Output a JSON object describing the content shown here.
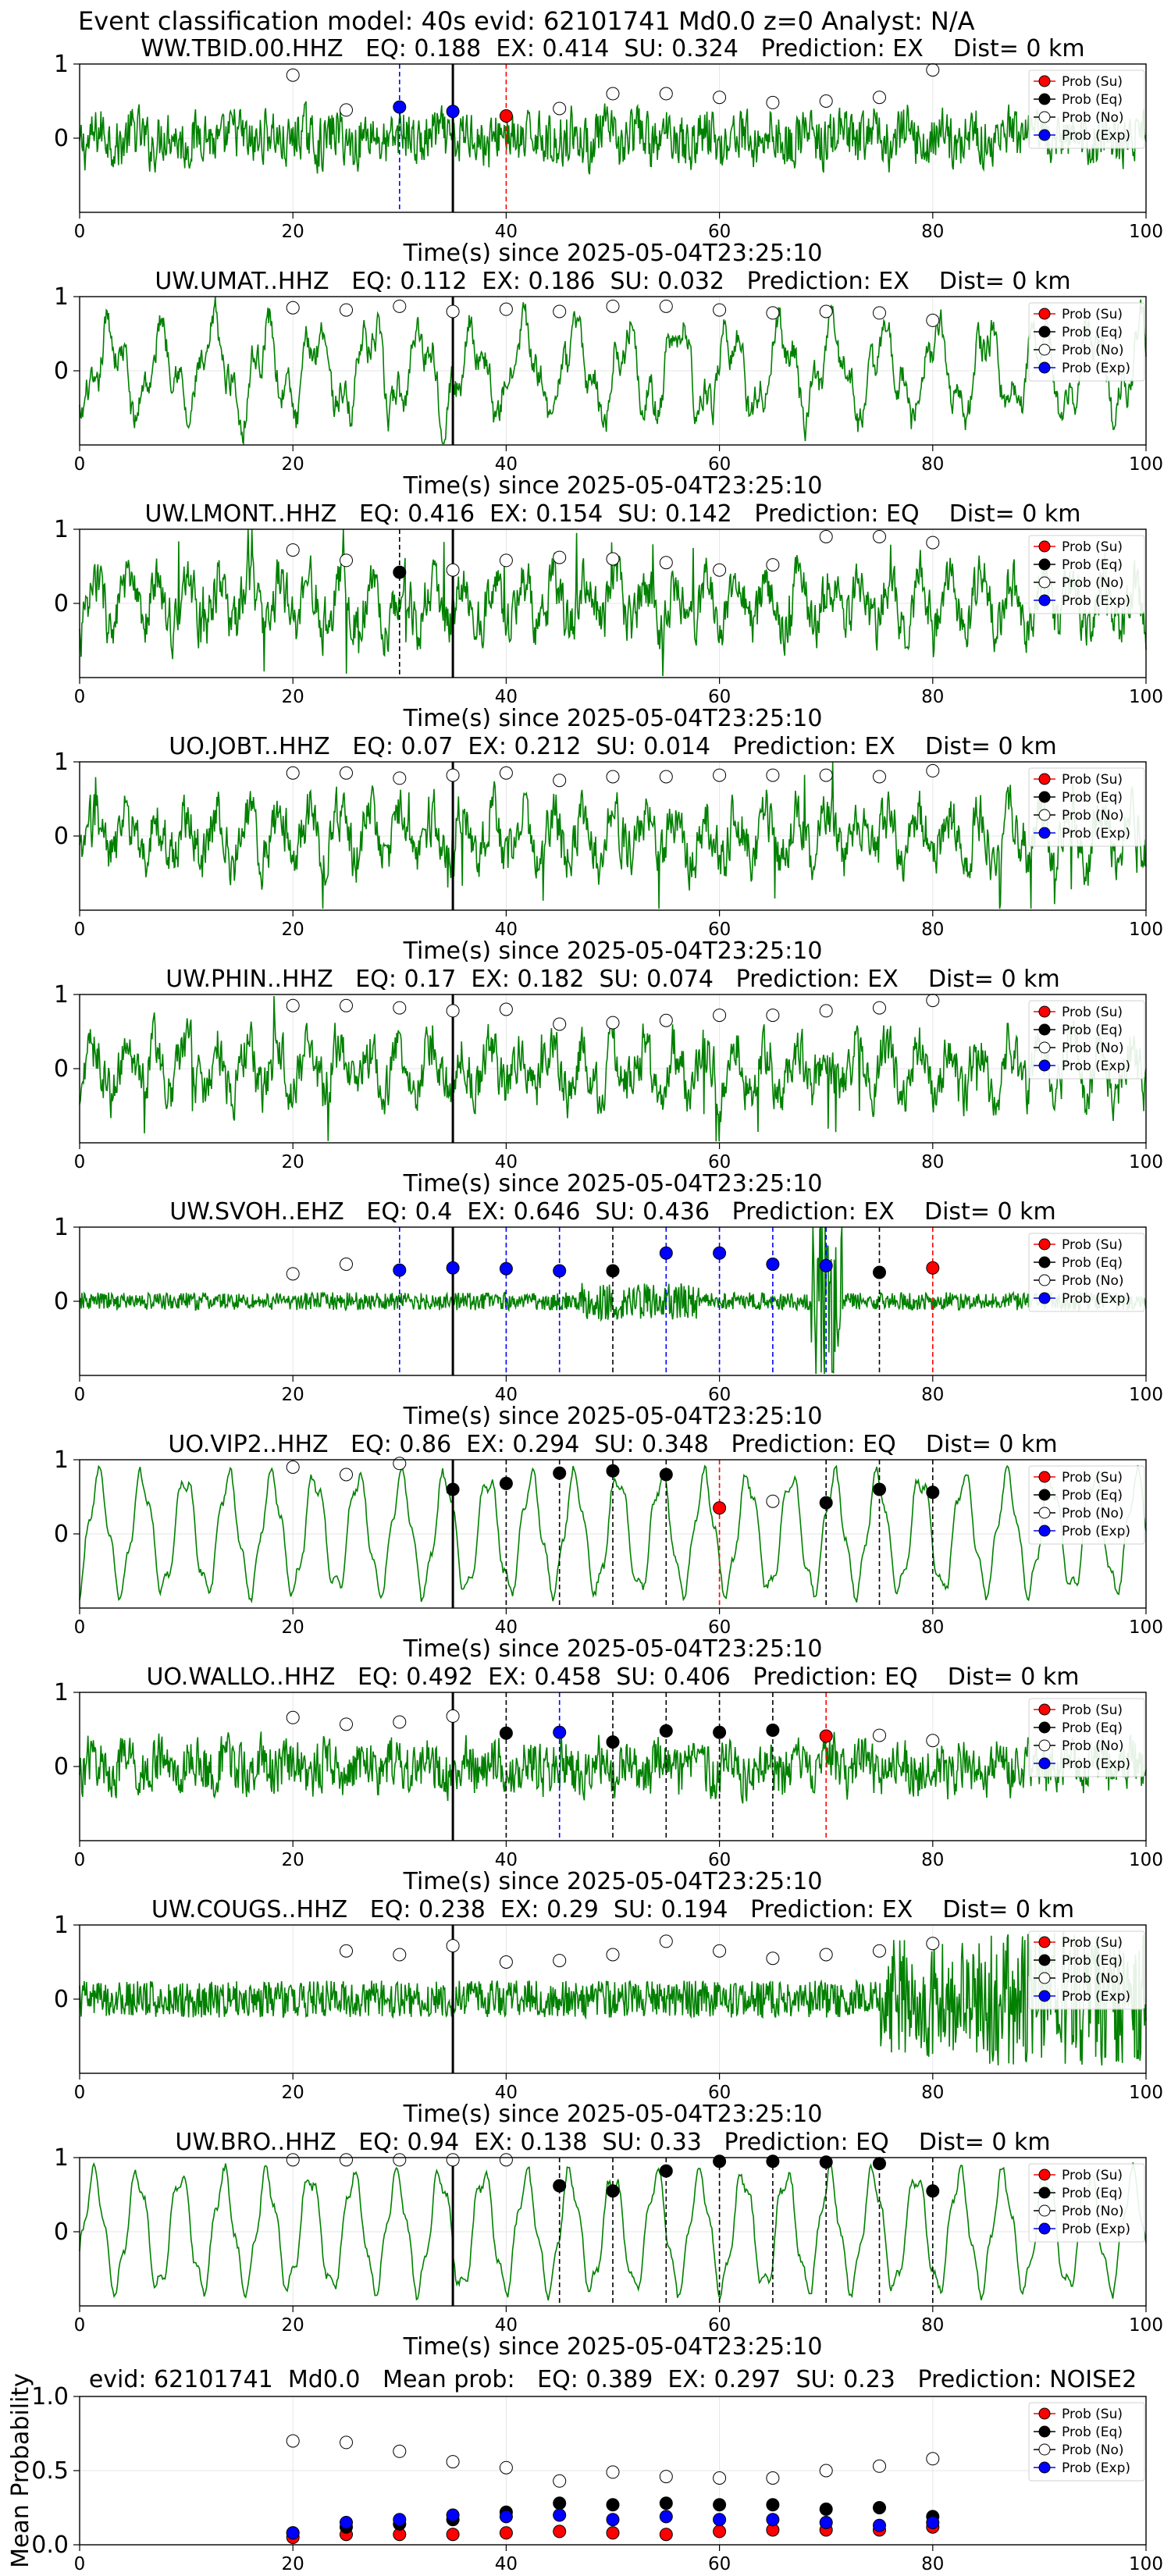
{
  "figure_title": "Event classification model: 40s evid: 62101741 Md0.0 z=0 Analyst: N/A",
  "legend_labels": [
    "Prob (Su)",
    "Prob (Eq)",
    "Prob (No)",
    "Prob (Exp)"
  ],
  "colors": {
    "trace": "#008000",
    "su": "#ff0000",
    "eq": "#000000",
    "no": "#ffffff",
    "exp": "#0000ff",
    "origin_line": "#000000",
    "grid": "#e6e6e6"
  },
  "chart_data": [
    {
      "type": "line",
      "title": "WW.TBID.00.HHZ   EQ: 0.188  EX: 0.414  SU: 0.324   Prediction: EX    Dist= 0 km",
      "xlabel": "Time(s) since 2025-05-04T23:25:10",
      "xlim": [
        0,
        100
      ],
      "ylim": [
        -1,
        1
      ],
      "xticks": [
        "0",
        "20",
        "40",
        "60",
        "80",
        "100"
      ],
      "yticks": [
        "1",
        "0"
      ],
      "origin_time": 35,
      "trace_style": "broadband",
      "markers": [
        {
          "t": 20,
          "p": 0.85,
          "cls": "no"
        },
        {
          "t": 25,
          "p": 0.38,
          "cls": "no"
        },
        {
          "t": 30,
          "p": 0.42,
          "cls": "exp",
          "line": true
        },
        {
          "t": 35,
          "p": 0.36,
          "cls": "exp"
        },
        {
          "t": 40,
          "p": 0.3,
          "cls": "su",
          "line": true
        },
        {
          "t": 45,
          "p": 0.4,
          "cls": "no"
        },
        {
          "t": 50,
          "p": 0.6,
          "cls": "no"
        },
        {
          "t": 55,
          "p": 0.6,
          "cls": "no"
        },
        {
          "t": 60,
          "p": 0.55,
          "cls": "no"
        },
        {
          "t": 65,
          "p": 0.48,
          "cls": "no"
        },
        {
          "t": 70,
          "p": 0.5,
          "cls": "no"
        },
        {
          "t": 75,
          "p": 0.55,
          "cls": "no"
        },
        {
          "t": 80,
          "p": 0.92,
          "cls": "no"
        }
      ]
    },
    {
      "type": "line",
      "title": "UW.UMAT..HHZ   EQ: 0.112  EX: 0.186  SU: 0.032   Prediction: EX    Dist= 0 km",
      "xlabel": "Time(s) since 2025-05-04T23:25:10",
      "xlim": [
        0,
        100
      ],
      "ylim": [
        -1,
        1
      ],
      "xticks": [
        "0",
        "20",
        "40",
        "60",
        "80",
        "100"
      ],
      "yticks": [
        "1",
        "0"
      ],
      "origin_time": 35,
      "trace_style": "wavy",
      "markers": [
        {
          "t": 20,
          "p": 0.85,
          "cls": "no"
        },
        {
          "t": 25,
          "p": 0.82,
          "cls": "no"
        },
        {
          "t": 30,
          "p": 0.87,
          "cls": "no"
        },
        {
          "t": 35,
          "p": 0.8,
          "cls": "no"
        },
        {
          "t": 40,
          "p": 0.83,
          "cls": "no"
        },
        {
          "t": 45,
          "p": 0.8,
          "cls": "no"
        },
        {
          "t": 50,
          "p": 0.87,
          "cls": "no"
        },
        {
          "t": 55,
          "p": 0.87,
          "cls": "no"
        },
        {
          "t": 60,
          "p": 0.82,
          "cls": "no"
        },
        {
          "t": 65,
          "p": 0.78,
          "cls": "no"
        },
        {
          "t": 70,
          "p": 0.8,
          "cls": "no"
        },
        {
          "t": 75,
          "p": 0.78,
          "cls": "no"
        },
        {
          "t": 80,
          "p": 0.68,
          "cls": "no"
        }
      ]
    },
    {
      "type": "line",
      "title": "UW.LMONT..HHZ   EQ: 0.416  EX: 0.154  SU: 0.142   Prediction: EQ    Dist= 0 km",
      "xlabel": "Time(s) since 2025-05-04T23:25:10",
      "xlim": [
        0,
        100
      ],
      "ylim": [
        -1,
        1
      ],
      "xticks": [
        "0",
        "20",
        "40",
        "60",
        "80",
        "100"
      ],
      "yticks": [
        "1",
        "0"
      ],
      "origin_time": 35,
      "trace_style": "spiky",
      "markers": [
        {
          "t": 20,
          "p": 0.72,
          "cls": "no"
        },
        {
          "t": 25,
          "p": 0.58,
          "cls": "no"
        },
        {
          "t": 30,
          "p": 0.42,
          "cls": "eq",
          "line": true
        },
        {
          "t": 35,
          "p": 0.45,
          "cls": "no"
        },
        {
          "t": 40,
          "p": 0.58,
          "cls": "no"
        },
        {
          "t": 45,
          "p": 0.62,
          "cls": "no"
        },
        {
          "t": 50,
          "p": 0.6,
          "cls": "no"
        },
        {
          "t": 55,
          "p": 0.55,
          "cls": "no"
        },
        {
          "t": 60,
          "p": 0.45,
          "cls": "no"
        },
        {
          "t": 65,
          "p": 0.52,
          "cls": "no"
        },
        {
          "t": 70,
          "p": 0.9,
          "cls": "no"
        },
        {
          "t": 75,
          "p": 0.9,
          "cls": "no"
        },
        {
          "t": 80,
          "p": 0.82,
          "cls": "no"
        }
      ]
    },
    {
      "type": "line",
      "title": "UO.JOBT..HHZ   EQ: 0.07  EX: 0.212  SU: 0.014   Prediction: EX    Dist= 0 km",
      "xlabel": "Time(s) since 2025-05-04T23:25:10",
      "xlim": [
        0,
        100
      ],
      "ylim": [
        -1,
        1
      ],
      "xticks": [
        "0",
        "20",
        "40",
        "60",
        "80",
        "100"
      ],
      "yticks": [
        "1",
        "0"
      ],
      "origin_time": 35,
      "trace_style": "spiky",
      "markers": [
        {
          "t": 20,
          "p": 0.85,
          "cls": "no"
        },
        {
          "t": 25,
          "p": 0.85,
          "cls": "no"
        },
        {
          "t": 30,
          "p": 0.78,
          "cls": "no"
        },
        {
          "t": 35,
          "p": 0.82,
          "cls": "no"
        },
        {
          "t": 40,
          "p": 0.85,
          "cls": "no"
        },
        {
          "t": 45,
          "p": 0.75,
          "cls": "no"
        },
        {
          "t": 50,
          "p": 0.8,
          "cls": "no"
        },
        {
          "t": 55,
          "p": 0.8,
          "cls": "no"
        },
        {
          "t": 60,
          "p": 0.82,
          "cls": "no"
        },
        {
          "t": 65,
          "p": 0.82,
          "cls": "no"
        },
        {
          "t": 70,
          "p": 0.82,
          "cls": "no"
        },
        {
          "t": 75,
          "p": 0.8,
          "cls": "no"
        },
        {
          "t": 80,
          "p": 0.88,
          "cls": "no"
        }
      ]
    },
    {
      "type": "line",
      "title": "UW.PHIN..HHZ   EQ: 0.17  EX: 0.182  SU: 0.074   Prediction: EX    Dist= 0 km",
      "xlabel": "Time(s) since 2025-05-04T23:25:10",
      "xlim": [
        0,
        100
      ],
      "ylim": [
        -1,
        1
      ],
      "xticks": [
        "0",
        "20",
        "40",
        "60",
        "80",
        "100"
      ],
      "yticks": [
        "1",
        "0"
      ],
      "origin_time": 35,
      "trace_style": "spiky",
      "markers": [
        {
          "t": 20,
          "p": 0.85,
          "cls": "no"
        },
        {
          "t": 25,
          "p": 0.85,
          "cls": "no"
        },
        {
          "t": 30,
          "p": 0.82,
          "cls": "no"
        },
        {
          "t": 35,
          "p": 0.78,
          "cls": "no"
        },
        {
          "t": 40,
          "p": 0.8,
          "cls": "no"
        },
        {
          "t": 45,
          "p": 0.6,
          "cls": "no"
        },
        {
          "t": 50,
          "p": 0.62,
          "cls": "no"
        },
        {
          "t": 55,
          "p": 0.65,
          "cls": "no"
        },
        {
          "t": 60,
          "p": 0.72,
          "cls": "no"
        },
        {
          "t": 65,
          "p": 0.72,
          "cls": "no"
        },
        {
          "t": 70,
          "p": 0.78,
          "cls": "no"
        },
        {
          "t": 75,
          "p": 0.82,
          "cls": "no"
        },
        {
          "t": 80,
          "p": 0.92,
          "cls": "no"
        }
      ]
    },
    {
      "type": "line",
      "title": "UW.SVOH..EHZ   EQ: 0.4  EX: 0.646  SU: 0.436   Prediction: EX    Dist= 0 km",
      "xlabel": "Time(s) since 2025-05-04T23:25:10",
      "xlim": [
        0,
        100
      ],
      "ylim": [
        -1,
        1
      ],
      "xticks": [
        "0",
        "20",
        "40",
        "60",
        "80",
        "100"
      ],
      "yticks": [
        "1",
        "0"
      ],
      "origin_time": 35,
      "trace_style": "quiet",
      "markers": [
        {
          "t": 20,
          "p": 0.37,
          "cls": "no"
        },
        {
          "t": 25,
          "p": 0.5,
          "cls": "no"
        },
        {
          "t": 30,
          "p": 0.42,
          "cls": "exp",
          "line": true
        },
        {
          "t": 35,
          "p": 0.45,
          "cls": "exp"
        },
        {
          "t": 40,
          "p": 0.44,
          "cls": "exp",
          "line": true
        },
        {
          "t": 45,
          "p": 0.41,
          "cls": "exp",
          "line": true
        },
        {
          "t": 50,
          "p": 0.41,
          "cls": "eq",
          "line": true
        },
        {
          "t": 55,
          "p": 0.65,
          "cls": "exp",
          "line": true
        },
        {
          "t": 60,
          "p": 0.65,
          "cls": "exp",
          "line": true
        },
        {
          "t": 65,
          "p": 0.5,
          "cls": "exp",
          "line": true
        },
        {
          "t": 70,
          "p": 0.48,
          "cls": "exp",
          "line": true
        },
        {
          "t": 75,
          "p": 0.39,
          "cls": "eq",
          "line": true
        },
        {
          "t": 80,
          "p": 0.45,
          "cls": "su",
          "line": true
        }
      ]
    },
    {
      "type": "line",
      "title": "UO.VIP2..HHZ   EQ: 0.86  EX: 0.294  SU: 0.348   Prediction: EQ    Dist= 0 km",
      "xlabel": "Time(s) since 2025-05-04T23:25:10",
      "xlim": [
        0,
        100
      ],
      "ylim": [
        -1,
        1
      ],
      "xticks": [
        "0",
        "20",
        "40",
        "60",
        "80",
        "100"
      ],
      "yticks": [
        "1",
        "0"
      ],
      "origin_time": 35,
      "trace_style": "sine",
      "markers": [
        {
          "t": 20,
          "p": 0.9,
          "cls": "no"
        },
        {
          "t": 25,
          "p": 0.8,
          "cls": "no"
        },
        {
          "t": 30,
          "p": 0.95,
          "cls": "no"
        },
        {
          "t": 35,
          "p": 0.6,
          "cls": "eq"
        },
        {
          "t": 40,
          "p": 0.68,
          "cls": "eq",
          "line": true
        },
        {
          "t": 45,
          "p": 0.82,
          "cls": "eq",
          "line": true
        },
        {
          "t": 50,
          "p": 0.85,
          "cls": "eq",
          "line": true
        },
        {
          "t": 55,
          "p": 0.8,
          "cls": "eq",
          "line": true
        },
        {
          "t": 60,
          "p": 0.35,
          "cls": "su",
          "line": true
        },
        {
          "t": 65,
          "p": 0.44,
          "cls": "no"
        },
        {
          "t": 70,
          "p": 0.42,
          "cls": "eq",
          "line": true
        },
        {
          "t": 75,
          "p": 0.6,
          "cls": "eq",
          "line": true
        },
        {
          "t": 80,
          "p": 0.56,
          "cls": "eq",
          "line": true
        }
      ]
    },
    {
      "type": "line",
      "title": "UO.WALLO..HHZ   EQ: 0.492  EX: 0.458  SU: 0.406   Prediction: EQ    Dist= 0 km",
      "xlabel": "Time(s) since 2025-05-04T23:25:10",
      "xlim": [
        0,
        100
      ],
      "ylim": [
        -1,
        1
      ],
      "xticks": [
        "0",
        "20",
        "40",
        "60",
        "80",
        "100"
      ],
      "yticks": [
        "1",
        "0"
      ],
      "origin_time": 35,
      "trace_style": "broadband",
      "markers": [
        {
          "t": 20,
          "p": 0.66,
          "cls": "no"
        },
        {
          "t": 25,
          "p": 0.57,
          "cls": "no"
        },
        {
          "t": 30,
          "p": 0.6,
          "cls": "no"
        },
        {
          "t": 35,
          "p": 0.68,
          "cls": "no"
        },
        {
          "t": 40,
          "p": 0.45,
          "cls": "eq",
          "line": true
        },
        {
          "t": 45,
          "p": 0.46,
          "cls": "exp",
          "line": true
        },
        {
          "t": 50,
          "p": 0.33,
          "cls": "eq",
          "line": true
        },
        {
          "t": 55,
          "p": 0.48,
          "cls": "eq",
          "line": true
        },
        {
          "t": 60,
          "p": 0.46,
          "cls": "eq",
          "line": true
        },
        {
          "t": 65,
          "p": 0.49,
          "cls": "eq",
          "line": true
        },
        {
          "t": 70,
          "p": 0.41,
          "cls": "su",
          "line": true
        },
        {
          "t": 75,
          "p": 0.42,
          "cls": "no"
        },
        {
          "t": 80,
          "p": 0.35,
          "cls": "no"
        }
      ]
    },
    {
      "type": "line",
      "title": "UW.COUGS..HHZ   EQ: 0.238  EX: 0.29  SU: 0.194   Prediction: EX    Dist= 0 km",
      "xlabel": "Time(s) since 2025-05-04T23:25:10",
      "xlim": [
        0,
        100
      ],
      "ylim": [
        -1,
        1
      ],
      "xticks": [
        "0",
        "20",
        "40",
        "60",
        "80",
        "100"
      ],
      "yticks": [
        "1",
        "0"
      ],
      "origin_time": 35,
      "trace_style": "dense",
      "markers": [
        {
          "t": 25,
          "p": 0.65,
          "cls": "no"
        },
        {
          "t": 30,
          "p": 0.6,
          "cls": "no"
        },
        {
          "t": 35,
          "p": 0.72,
          "cls": "no"
        },
        {
          "t": 40,
          "p": 0.5,
          "cls": "no"
        },
        {
          "t": 45,
          "p": 0.52,
          "cls": "no"
        },
        {
          "t": 50,
          "p": 0.6,
          "cls": "no"
        },
        {
          "t": 55,
          "p": 0.78,
          "cls": "no"
        },
        {
          "t": 60,
          "p": 0.65,
          "cls": "no"
        },
        {
          "t": 65,
          "p": 0.55,
          "cls": "no"
        },
        {
          "t": 70,
          "p": 0.6,
          "cls": "no"
        },
        {
          "t": 75,
          "p": 0.65,
          "cls": "no"
        },
        {
          "t": 80,
          "p": 0.75,
          "cls": "no"
        }
      ]
    },
    {
      "type": "line",
      "title": "UW.BRO..HHZ   EQ: 0.94  EX: 0.138  SU: 0.33   Prediction: EQ    Dist= 0 km",
      "xlabel": "Time(s) since 2025-05-04T23:25:10",
      "xlim": [
        0,
        100
      ],
      "ylim": [
        -1,
        1
      ],
      "xticks": [
        "0",
        "20",
        "40",
        "60",
        "80",
        "100"
      ],
      "yticks": [
        "1",
        "0"
      ],
      "origin_time": 35,
      "trace_style": "sine",
      "markers": [
        {
          "t": 20,
          "p": 0.97,
          "cls": "no"
        },
        {
          "t": 25,
          "p": 0.97,
          "cls": "no"
        },
        {
          "t": 30,
          "p": 0.97,
          "cls": "no"
        },
        {
          "t": 35,
          "p": 0.97,
          "cls": "no"
        },
        {
          "t": 40,
          "p": 0.97,
          "cls": "no"
        },
        {
          "t": 45,
          "p": 0.62,
          "cls": "eq",
          "line": true
        },
        {
          "t": 50,
          "p": 0.55,
          "cls": "eq",
          "line": true
        },
        {
          "t": 55,
          "p": 0.82,
          "cls": "eq",
          "line": true
        },
        {
          "t": 60,
          "p": 0.95,
          "cls": "eq",
          "line": true
        },
        {
          "t": 65,
          "p": 0.95,
          "cls": "eq",
          "line": true
        },
        {
          "t": 70,
          "p": 0.94,
          "cls": "eq",
          "line": true
        },
        {
          "t": 75,
          "p": 0.92,
          "cls": "eq",
          "line": true
        },
        {
          "t": 80,
          "p": 0.55,
          "cls": "eq",
          "line": true
        }
      ]
    },
    {
      "type": "scatter",
      "title": "evid: 62101741  Md0.0   Mean prob:   EQ: 0.389  EX: 0.297  SU: 0.23   Prediction: NOISE2",
      "ylabel": "Mean Probability",
      "xlim": [
        0,
        100
      ],
      "ylim": [
        0,
        1
      ],
      "xticks": [
        "0",
        "20",
        "40",
        "60",
        "80",
        "100"
      ],
      "yticks": [
        "1.0",
        "0.5",
        "0.0"
      ],
      "x": [
        20,
        25,
        30,
        35,
        40,
        45,
        50,
        55,
        60,
        65,
        70,
        75,
        80
      ],
      "series": [
        {
          "name": "Prob (Su)",
          "cls": "su",
          "values": [
            0.05,
            0.07,
            0.07,
            0.07,
            0.08,
            0.09,
            0.08,
            0.07,
            0.09,
            0.1,
            0.1,
            0.1,
            0.12
          ]
        },
        {
          "name": "Prob (Eq)",
          "cls": "eq",
          "values": [
            0.08,
            0.12,
            0.14,
            0.17,
            0.22,
            0.28,
            0.27,
            0.28,
            0.27,
            0.27,
            0.24,
            0.25,
            0.19
          ]
        },
        {
          "name": "Prob (No)",
          "cls": "no",
          "values": [
            0.7,
            0.69,
            0.63,
            0.56,
            0.52,
            0.43,
            0.49,
            0.46,
            0.45,
            0.45,
            0.5,
            0.53,
            0.58
          ]
        },
        {
          "name": "Prob (Exp)",
          "cls": "exp",
          "values": [
            0.08,
            0.15,
            0.17,
            0.2,
            0.19,
            0.2,
            0.17,
            0.19,
            0.17,
            0.17,
            0.15,
            0.13,
            0.15
          ]
        }
      ]
    }
  ]
}
